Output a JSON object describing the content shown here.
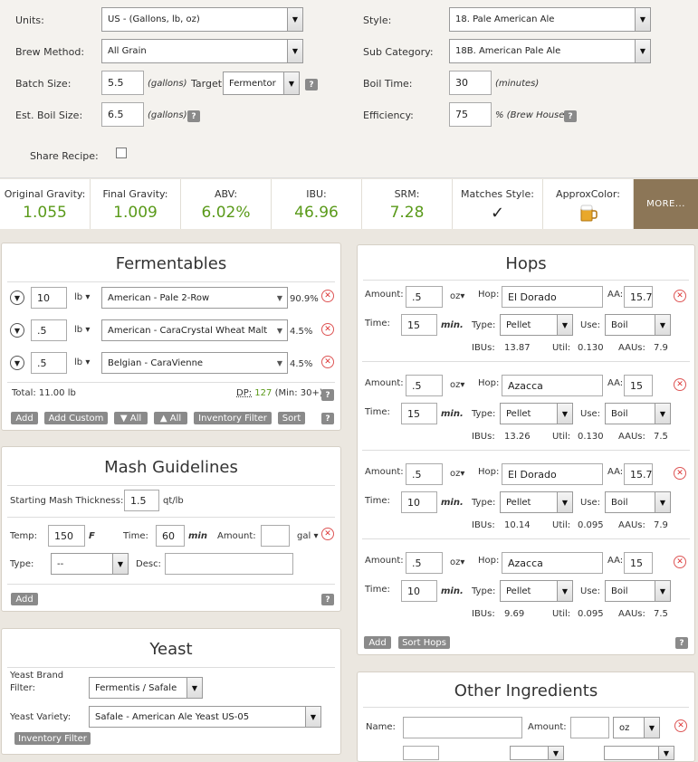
{
  "recipe": {
    "units_label": "Units:",
    "units_value": "US - (Gallons, lb, oz)",
    "brew_method_label": "Brew Method:",
    "brew_method_value": "All Grain",
    "batch_size_label": "Batch Size:",
    "batch_size_value": "5.5",
    "batch_size_unit": "(gallons)",
    "target_label": "Target:",
    "target_value": "Fermentor",
    "boil_size_label": "Est. Boil Size:",
    "boil_size_value": "6.5",
    "boil_size_unit": "(gallons)",
    "share_label": "Share Recipe:",
    "style_label": "Style:",
    "style_value": "18. Pale American Ale",
    "subcat_label": "Sub Category:",
    "subcat_value": "18B. American Pale Ale",
    "boil_time_label": "Boil Time:",
    "boil_time_value": "30",
    "boil_time_unit": "(minutes)",
    "efficiency_label": "Efficiency:",
    "efficiency_value": "75",
    "efficiency_unit": "% (Brew House)",
    "help": "?"
  },
  "stats": {
    "og_label": "Original Gravity:",
    "og_value": "1.055",
    "fg_label": "Final Gravity:",
    "fg_value": "1.009",
    "abv_label": "ABV:",
    "abv_value": "6.02%",
    "ibu_label": "IBU:",
    "ibu_value": "46.96",
    "srm_label": "SRM:",
    "srm_value": "7.28",
    "match_label": "Matches Style:",
    "match_value": "✓",
    "color_label": "ApproxColor:",
    "more_label": "MORE..."
  },
  "fermentables": {
    "title": "Fermentables",
    "unit": "lb",
    "items": [
      {
        "amount": "10",
        "name": "American - Pale 2-Row",
        "pct": "90.9%"
      },
      {
        "amount": ".5",
        "name": "American - CaraCrystal Wheat Malt",
        "pct": "4.5%"
      },
      {
        "amount": ".5",
        "name": "Belgian - CaraVienne",
        "pct": "4.5%"
      }
    ],
    "total": "Total: 11.00 lb",
    "dp_label": "DP:",
    "dp_value": "127",
    "dp_min": "(Min: 30+)",
    "buttons": [
      "Add",
      "Add Custom",
      "▼ All",
      "▲ All",
      "Inventory Filter",
      "Sort"
    ]
  },
  "mash": {
    "title": "Mash Guidelines",
    "thickness_label": "Starting Mash Thickness:",
    "thickness_value": "1.5",
    "thickness_unit": "qt/lb",
    "temp_label": "Temp:",
    "temp_value": "150",
    "temp_unit": "F",
    "time_label": "Time:",
    "time_value": "60",
    "time_unit": "min",
    "amount_label": "Amount:",
    "amount_value": "",
    "amount_unit": "gal",
    "type_label": "Type:",
    "type_value": "--",
    "desc_label": "Desc:",
    "add_label": "Add"
  },
  "yeast": {
    "title": "Yeast",
    "brand_label_1": "Yeast Brand",
    "brand_label_2": "Filter:",
    "brand_value": "Fermentis / Safale",
    "variety_label": "Yeast Variety:",
    "variety_value": "Safale - American Ale Yeast US-05",
    "inventory_label": "Inventory Filter"
  },
  "hops": {
    "title": "Hops",
    "amount_label": "Amount:",
    "unit": "oz",
    "hop_label": "Hop:",
    "aa_label": "AA:",
    "time_label": "Time:",
    "time_unit": "min.",
    "type_label": "Type:",
    "use_label": "Use:",
    "ibus_label": "IBUs:",
    "util_label": "Util:",
    "aaus_label": "AAUs:",
    "items": [
      {
        "amount": ".5",
        "name": "El Dorado",
        "aa": "15.7",
        "time": "15",
        "type": "Pellet",
        "use": "Boil",
        "ibus": "13.87",
        "util": "0.130",
        "aaus": "7.9"
      },
      {
        "amount": ".5",
        "name": "Azacca",
        "aa": "15",
        "time": "15",
        "type": "Pellet",
        "use": "Boil",
        "ibus": "13.26",
        "util": "0.130",
        "aaus": "7.5"
      },
      {
        "amount": ".5",
        "name": "El Dorado",
        "aa": "15.7",
        "time": "10",
        "type": "Pellet",
        "use": "Boil",
        "ibus": "10.14",
        "util": "0.095",
        "aaus": "7.9"
      },
      {
        "amount": ".5",
        "name": "Azacca",
        "aa": "15",
        "time": "10",
        "type": "Pellet",
        "use": "Boil",
        "ibus": "9.69",
        "util": "0.095",
        "aaus": "7.5"
      }
    ],
    "add_label": "Add",
    "sort_label": "Sort Hops"
  },
  "other": {
    "title": "Other Ingredients",
    "name_label": "Name:",
    "amount_label": "Amount:",
    "unit_value": "oz"
  },
  "colors": {
    "stat_green": "#5a9a1a",
    "more_bg": "#8c7657",
    "button_gray": "#8a8a8a",
    "remove_red": "#dd3333"
  }
}
